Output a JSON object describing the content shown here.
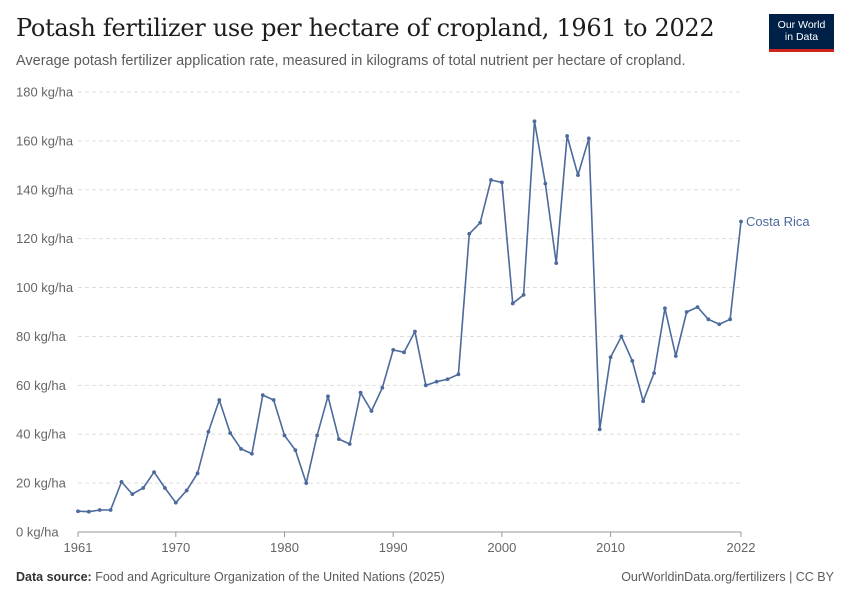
{
  "header": {
    "title": "Potash fertilizer use per hectare of cropland, 1961 to 2022",
    "subtitle": "Average potash fertilizer application rate, measured in kilograms of total nutrient per hectare of cropland."
  },
  "logo": {
    "line1": "Our World",
    "line2": "in Data"
  },
  "footer": {
    "source_label": "Data source:",
    "source_text": "Food and Agriculture Organization of the United Nations (2025)",
    "link_text": "OurWorldinData.org/fertilizers | CC BY"
  },
  "colors": {
    "series": "#4c6a9c",
    "grid": "#dddddd",
    "axis_text": "#666666"
  },
  "chart_data": {
    "type": "line",
    "title": "Potash fertilizer use per hectare of cropland, 1961 to 2022",
    "xlabel": "",
    "ylabel": "",
    "xlim": [
      1961,
      2022
    ],
    "ylim": [
      0,
      180
    ],
    "yticks": [
      0,
      20,
      40,
      60,
      80,
      100,
      120,
      140,
      160,
      180
    ],
    "ytick_labels": [
      "0 kg/ha",
      "20 kg/ha",
      "40 kg/ha",
      "60 kg/ha",
      "80 kg/ha",
      "100 kg/ha",
      "120 kg/ha",
      "140 kg/ha",
      "160 kg/ha",
      "180 kg/ha"
    ],
    "xticks": [
      1961,
      1970,
      1980,
      1990,
      2000,
      2010,
      2022
    ],
    "xtick_labels": [
      "1961",
      "1970",
      "1980",
      "1990",
      "2000",
      "2010",
      "2022"
    ],
    "grid": true,
    "series": [
      {
        "name": "Costa Rica",
        "x": [
          1961,
          1962,
          1963,
          1964,
          1965,
          1966,
          1967,
          1968,
          1969,
          1970,
          1971,
          1972,
          1973,
          1974,
          1975,
          1976,
          1977,
          1978,
          1979,
          1980,
          1981,
          1982,
          1983,
          1984,
          1985,
          1986,
          1987,
          1988,
          1989,
          1990,
          1991,
          1992,
          1993,
          1994,
          1995,
          1996,
          1997,
          1998,
          1999,
          2000,
          2001,
          2002,
          2003,
          2004,
          2005,
          2006,
          2007,
          2008,
          2009,
          2010,
          2011,
          2012,
          2013,
          2014,
          2015,
          2016,
          2017,
          2018,
          2019,
          2020,
          2021,
          2022
        ],
        "values": [
          8.5,
          8.3,
          9,
          9,
          20.5,
          15.5,
          18,
          24.5,
          18,
          12,
          17,
          24,
          41,
          54,
          40.5,
          34,
          32,
          56,
          54,
          39.5,
          33.5,
          20,
          39.5,
          55.5,
          38,
          36,
          57,
          49.5,
          59,
          74.5,
          73.5,
          82,
          60,
          61.5,
          62.5,
          64.5,
          122,
          126.5,
          144,
          143,
          93.5,
          97,
          168,
          142.5,
          110,
          162,
          146,
          161,
          42,
          71.5,
          80,
          70,
          53.5,
          65,
          91.5,
          72,
          90,
          92,
          87,
          85,
          87,
          127
        ]
      }
    ]
  }
}
